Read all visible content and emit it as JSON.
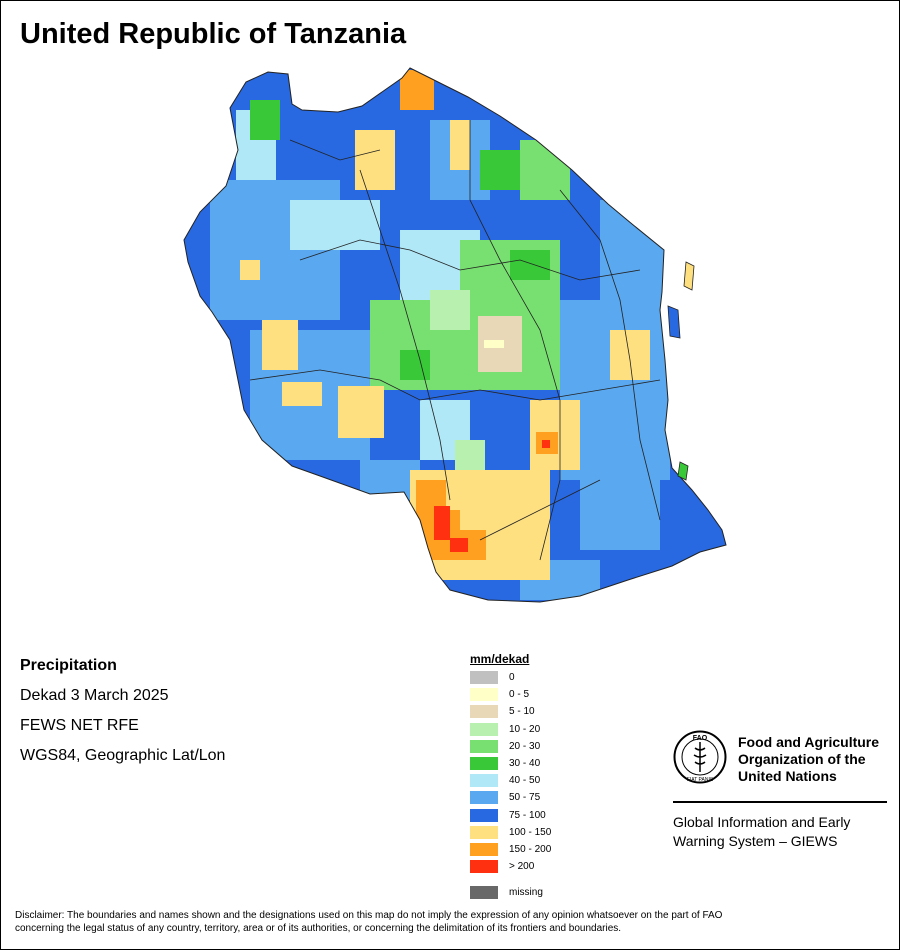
{
  "title": "United Republic of Tanzania",
  "info": {
    "variable": "Precipitation",
    "period": "Dekad 3 March 2025",
    "source": "FEWS NET RFE",
    "projection": "WGS84, Geographic Lat/Lon"
  },
  "legend": {
    "title": "mm/dekad",
    "classes": [
      {
        "label": "0",
        "color": "#c0c0c0"
      },
      {
        "label": "0 - 5",
        "color": "#ffffc8"
      },
      {
        "label": "5 - 10",
        "color": "#e8d8b8"
      },
      {
        "label": "10 - 20",
        "color": "#b8f0b0"
      },
      {
        "label": "20 - 30",
        "color": "#78e070"
      },
      {
        "label": "30 - 40",
        "color": "#38c838"
      },
      {
        "label": "40 - 50",
        "color": "#b0e8f8"
      },
      {
        "label": "50 - 75",
        "color": "#5aa8f0"
      },
      {
        "label": "75 - 100",
        "color": "#2868e0"
      },
      {
        "label": "100 - 150",
        "color": "#ffe080"
      },
      {
        "label": "150 - 200",
        "color": "#ffa020"
      },
      {
        "label": "> 200",
        "color": "#ff3010"
      }
    ],
    "missing": {
      "label": "missing",
      "color": "#686868"
    }
  },
  "logo": {
    "org_line1": "Food and Agriculture",
    "org_line2": "Organization of the",
    "org_line3": "United Nations",
    "system_line1": "Global Information and Early",
    "system_line2": "Warning System – GIEWS",
    "emblem_text": "FAO",
    "emblem_motto": "FIAT PANIS",
    "emblem_icon": "fao-wheat-emblem-icon"
  },
  "disclaimer_line1": "Disclaimer: The boundaries and names shown and the designations used on this map do not imply the expression of any opinion whatsoever on the part of FAO",
  "disclaimer_line2": "concerning the legal status of any country, territory, area or of its authorities, or concerning the delimitation of its frontiers and boundaries."
}
